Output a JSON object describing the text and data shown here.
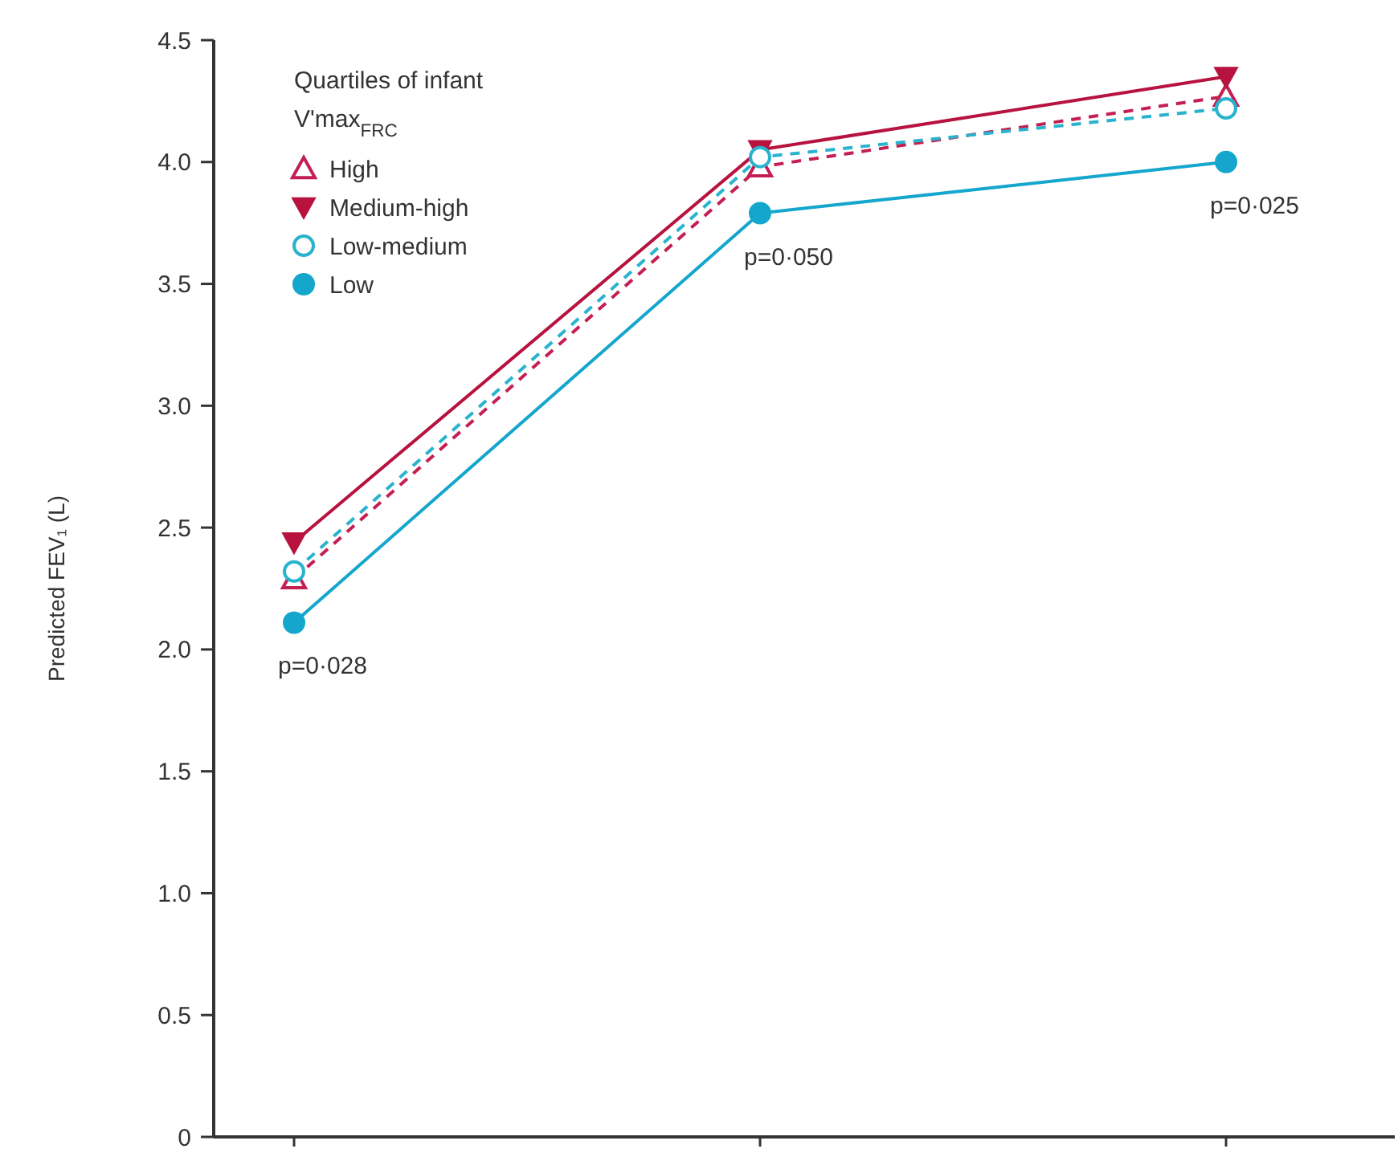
{
  "chart_data": {
    "type": "line",
    "ylabel": "Predicted FEV₁ (L)",
    "legend_title": "Quartiles of infant V'max$_{FRC}$",
    "categories": [
      null,
      null,
      null
    ],
    "ylim": [
      0,
      4.5
    ],
    "yticks": [
      0,
      0.5,
      {
        "value": 1,
        "label": "1.0"
      },
      1.5,
      {
        "value": 2,
        "label": "2.0"
      },
      2.5,
      {
        "value": 3,
        "label": "3.0"
      },
      3.5,
      {
        "value": 4,
        "label": "4.0"
      },
      4.5
    ],
    "series": [
      {
        "name": "High",
        "color": "#c41f52",
        "marker": "triangle",
        "line_style": "dashed",
        "values": [
          2.29,
          3.98,
          4.27
        ]
      },
      {
        "name": "Medium-high",
        "color": "#b8123f",
        "marker": "triangle-down",
        "line_style": "solid",
        "values": [
          2.44,
          4.05,
          4.35
        ]
      },
      {
        "name": "Low-medium",
        "color": "#2ab3cf",
        "marker": "circle-open",
        "line_style": "dashed",
        "values": [
          2.32,
          4.02,
          4.22
        ]
      },
      {
        "name": "Low",
        "color": "#14a6cc",
        "marker": "circle",
        "line_style": "solid",
        "values": [
          2.11,
          3.79,
          4.0
        ]
      }
    ],
    "annotations": [
      "p=0·028",
      "p=0·050",
      "p=0·025"
    ],
    "legend": "top left",
    "grid": false
  }
}
